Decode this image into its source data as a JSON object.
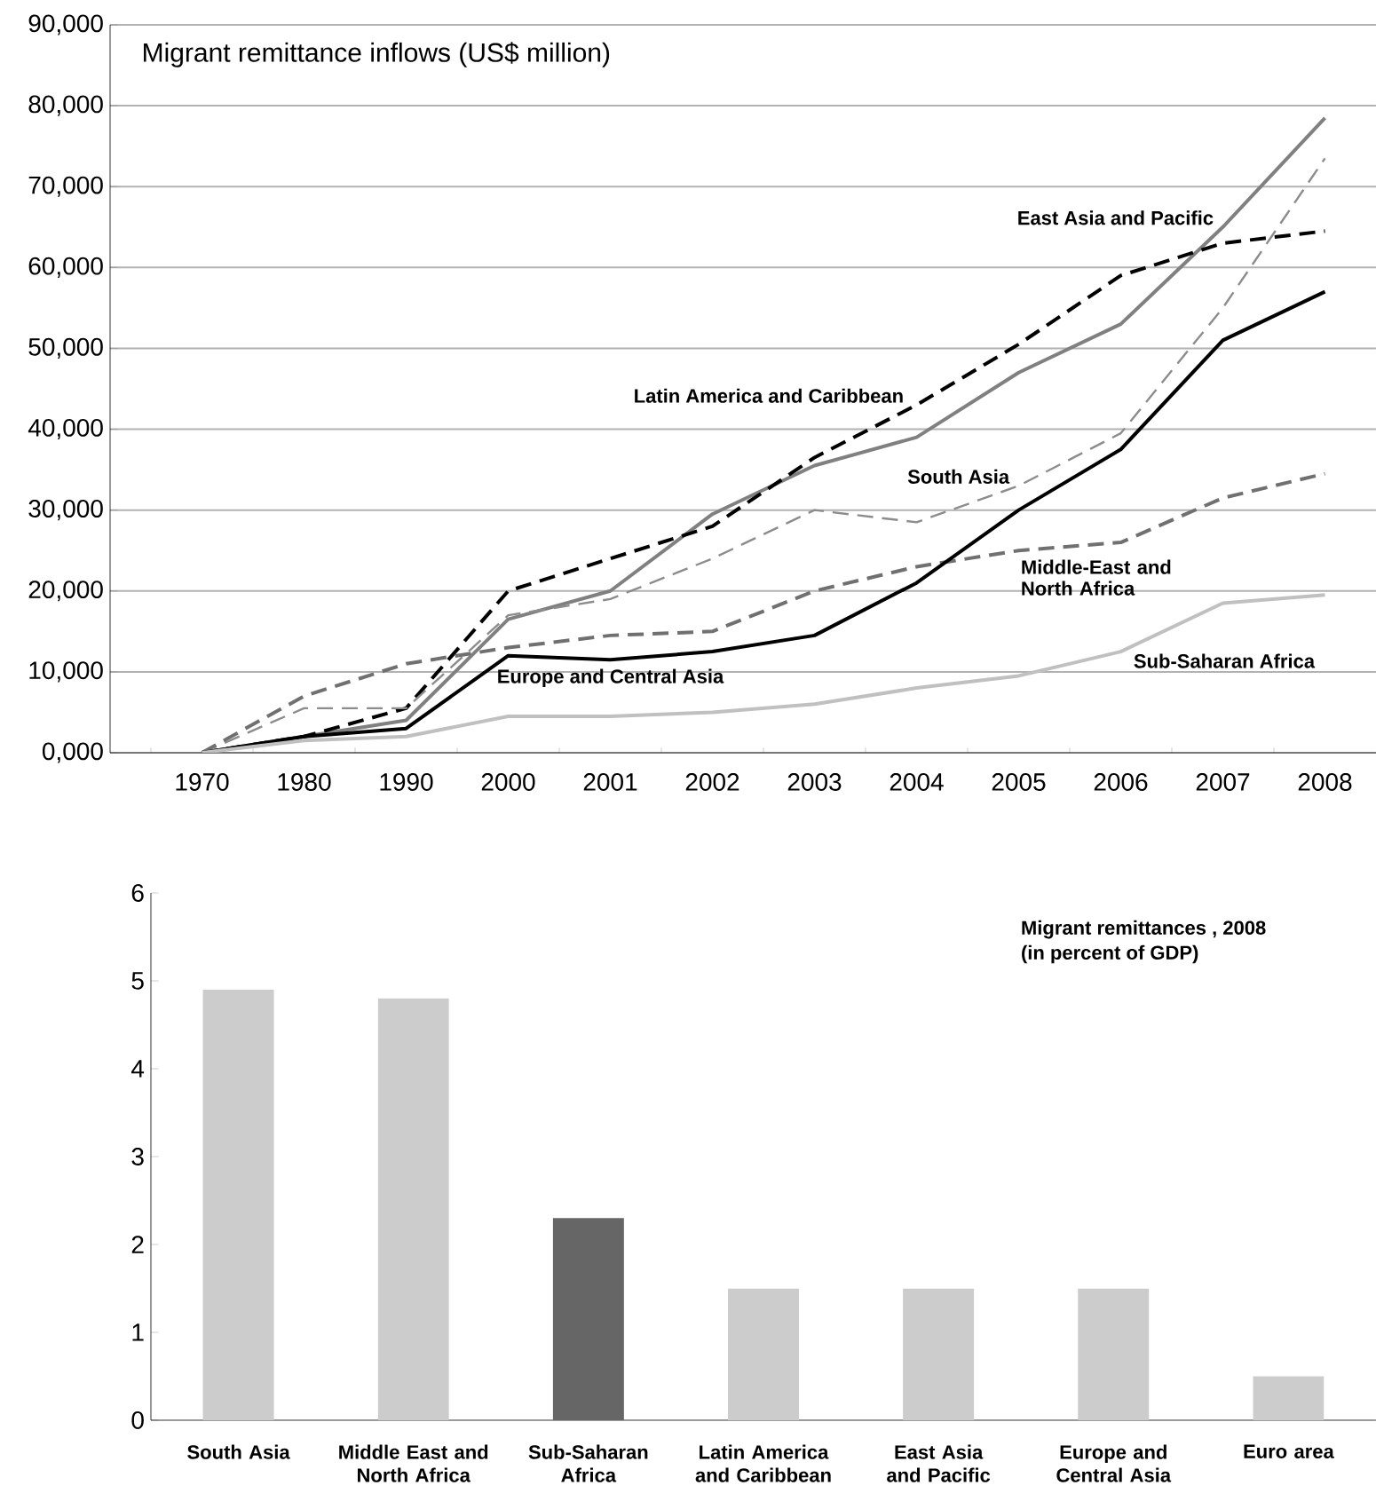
{
  "chart_data": [
    {
      "type": "line",
      "title": "Migrant remittance inflows (US$ million)",
      "categories": [
        "1970",
        "1980",
        "1990",
        "2000",
        "2001",
        "2002",
        "2003",
        "2004",
        "2005",
        "2006",
        "2007",
        "2008"
      ],
      "series": [
        {
          "name": "East Asia  and Pacific",
          "color": "#808080",
          "line_style": "solid",
          "values": [
            0,
            2000,
            4000,
            16500,
            20000,
            29500,
            35500,
            39000,
            47000,
            53000,
            65000,
            78500
          ]
        },
        {
          "name": "Latin America and Caribbean",
          "color": "#000000",
          "line_style": "dashed",
          "values": [
            0,
            2000,
            5500,
            20000,
            24000,
            28000,
            36500,
            43000,
            50500,
            59000,
            63000,
            64500
          ]
        },
        {
          "name": "South Asia",
          "color": "#8c8c8c",
          "line_style": "dashed",
          "values": [
            0,
            5500,
            5500,
            17000,
            19000,
            24000,
            30000,
            28500,
            33000,
            39500,
            55000,
            73500
          ]
        },
        {
          "name": "Middle-East and North Africa",
          "color": "#707070",
          "line_style": "dashed",
          "values": [
            0,
            7000,
            11000,
            13000,
            14500,
            15000,
            20000,
            23000,
            25000,
            26000,
            31500,
            34500
          ]
        },
        {
          "name": "Europe and Central Asia",
          "color": "#000000",
          "line_style": "solid",
          "values": [
            0,
            2000,
            3000,
            12000,
            11500,
            12500,
            14500,
            21000,
            30000,
            37500,
            51000,
            57000
          ]
        },
        {
          "name": "Sub-Saharan Africa",
          "color": "#c0c0c0",
          "line_style": "solid",
          "values": [
            0,
            1500,
            2000,
            4500,
            4500,
            5000,
            6000,
            8000,
            9500,
            12500,
            18500,
            19500
          ]
        }
      ],
      "ylim": [
        0,
        90000
      ],
      "yticks": [
        {
          "value": 0,
          "label": "0,000"
        },
        {
          "value": 10000,
          "label": "10,000"
        },
        {
          "value": 20000,
          "label": "20,000"
        },
        {
          "value": 30000,
          "label": "30,000"
        },
        {
          "value": 40000,
          "label": "40,000"
        },
        {
          "value": 50000,
          "label": "50,000"
        },
        {
          "value": 60000,
          "label": "60,000"
        },
        {
          "value": 70000,
          "label": "70,000"
        },
        {
          "value": 80000,
          "label": "80,000"
        },
        {
          "value": 90000,
          "label": "90,000"
        }
      ],
      "grid": "y"
    },
    {
      "type": "bar",
      "title": "Migrant remittances , 2008",
      "subtitle": "(in percent of GDP)",
      "categories": [
        "South Asia",
        "Middle East and North Africa",
        "Sub-Saharan Africa",
        "Latin America and Caribbean",
        "East Asia and Pacific",
        "Europe and Central Asia",
        "Euro area"
      ],
      "values": [
        4.9,
        4.8,
        2.3,
        1.5,
        1.5,
        1.5,
        0.5
      ],
      "colors": [
        "#cccccc",
        "#cccccc",
        "#666666",
        "#cccccc",
        "#cccccc",
        "#cccccc",
        "#cccccc"
      ],
      "ylim": [
        0,
        6
      ],
      "yticks": [
        0,
        1,
        2,
        3,
        4,
        5,
        6
      ]
    }
  ]
}
